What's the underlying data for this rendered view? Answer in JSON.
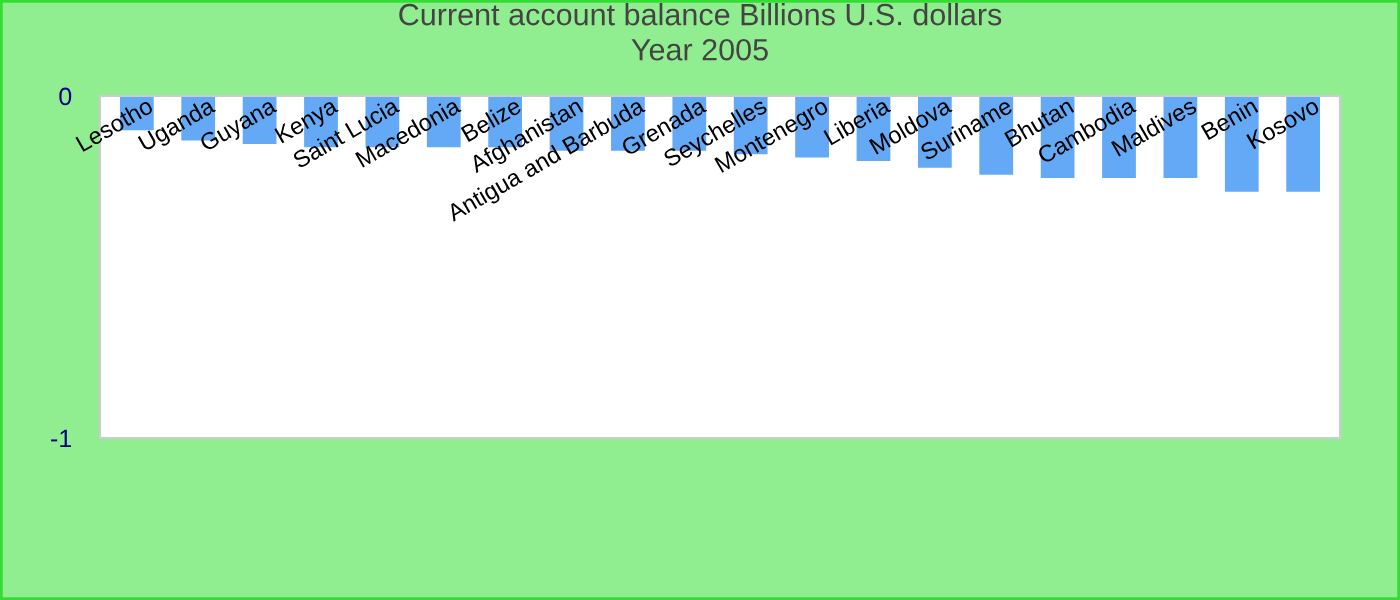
{
  "chart_data": {
    "type": "bar",
    "title": "Current account balance Billions U.S. dollars\nYear 2005",
    "categories": [
      "Lesotho",
      "Uganda",
      "Guyana",
      "Kenya",
      "Saint Lucia",
      "Macedonia",
      "Belize",
      "Afghanistan",
      "Antigua and Barbuda",
      "Grenada",
      "Seychelles",
      "Montenegro",
      "Liberia",
      "Moldova",
      "Suriname",
      "Bhutan",
      "Cambodia",
      "Maldives",
      "Benin",
      "Kosovo"
    ],
    "values": [
      -0.1,
      -0.13,
      -0.14,
      -0.15,
      -0.15,
      -0.15,
      -0.15,
      -0.16,
      -0.16,
      -0.16,
      -0.17,
      -0.18,
      -0.19,
      -0.21,
      -0.23,
      -0.24,
      -0.24,
      -0.24,
      -0.28,
      -0.28
    ],
    "color": "#63a9f5",
    "ylim": [
      -1,
      0
    ],
    "yticks": [
      -1,
      0
    ]
  }
}
